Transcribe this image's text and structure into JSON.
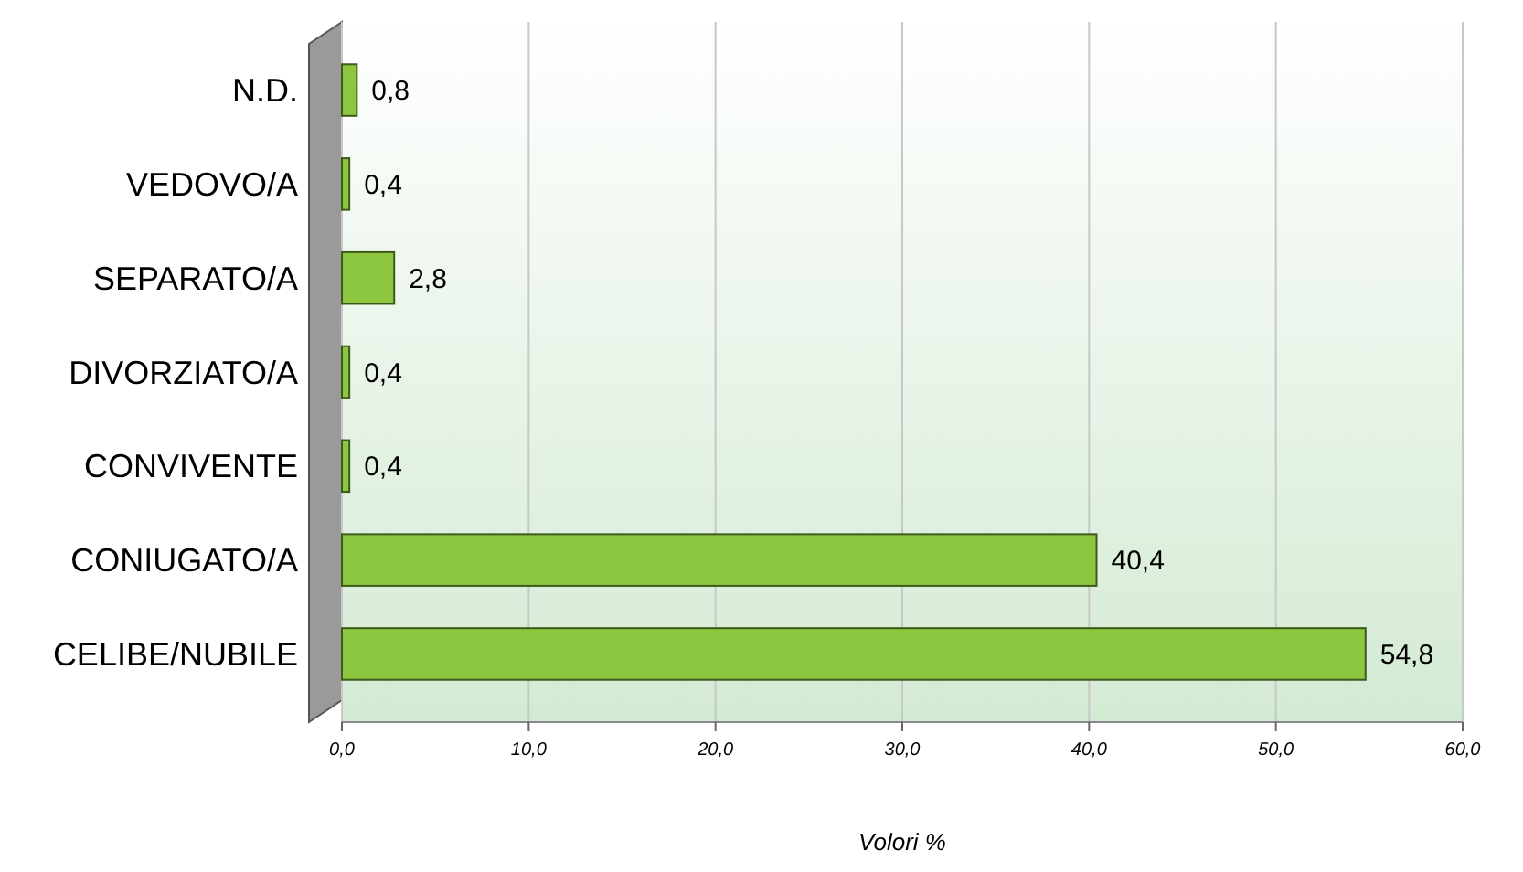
{
  "chart_data": {
    "type": "bar",
    "orientation": "horizontal",
    "xlabel": "Volori %",
    "categories": [
      "N.D.",
      "VEDOVO/A",
      "SEPARATO/A",
      "DIVORZIATO/A",
      "CONVIVENTE",
      "CONIUGATO/A",
      "CELIBE/NUBILE"
    ],
    "values": [
      0.8,
      0.4,
      2.8,
      0.4,
      0.4,
      40.4,
      54.8
    ],
    "value_labels": [
      "0,8",
      "0,4",
      "2,8",
      "0,4",
      "0,4",
      "40,4",
      "54,8"
    ],
    "color": "#8dc63f",
    "xlim": [
      0,
      60
    ],
    "xticks": [
      {
        "value": 0,
        "label": "0,0"
      },
      {
        "value": 10,
        "label": "10,0"
      },
      {
        "value": 20,
        "label": "20,0"
      },
      {
        "value": 30,
        "label": "30,0"
      },
      {
        "value": 40,
        "label": "40,0"
      },
      {
        "value": 50,
        "label": "50,0"
      },
      {
        "value": 60,
        "label": "60,0"
      }
    ],
    "grid": "x"
  }
}
